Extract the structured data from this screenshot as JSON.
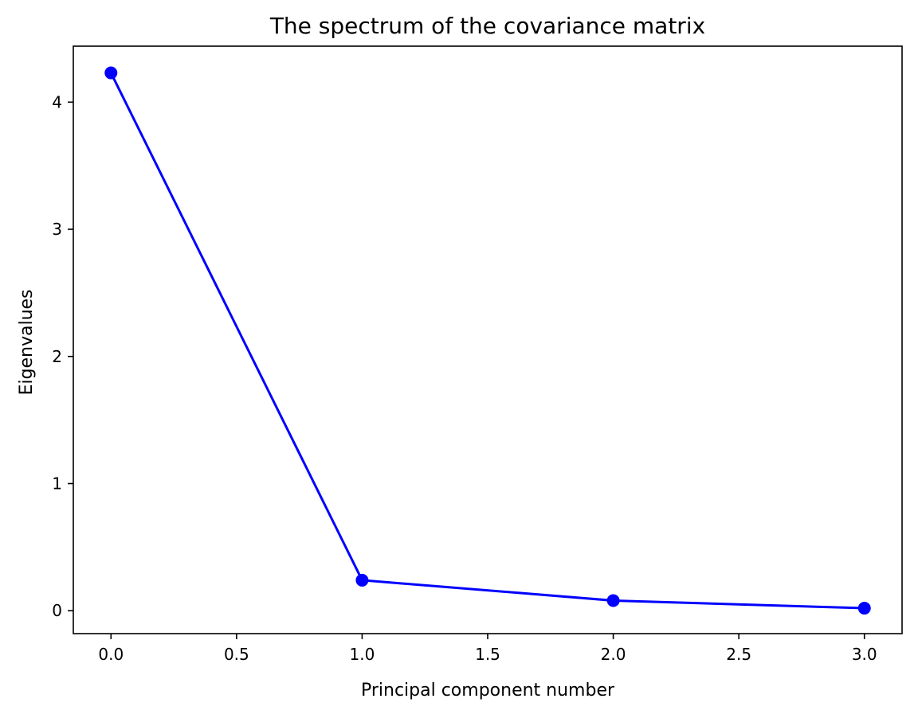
{
  "chart_data": {
    "type": "line",
    "title": "The spectrum of the covariance matrix",
    "xlabel": "Principal component number",
    "ylabel": "Eigenvalues",
    "x": [
      0,
      1,
      2,
      3
    ],
    "series": [
      {
        "values": [
          4.23,
          0.24,
          0.08,
          0.02
        ],
        "color": "#0000ff",
        "marker": "circle"
      }
    ],
    "xlim": [
      -0.15,
      3.15
    ],
    "ylim": [
      -0.18,
      4.44
    ],
    "xticks": [
      0.0,
      0.5,
      1.0,
      1.5,
      2.0,
      2.5,
      3.0
    ],
    "xtick_labels": [
      "0.0",
      "0.5",
      "1.0",
      "1.5",
      "2.0",
      "2.5",
      "3.0"
    ],
    "yticks": [
      0,
      1,
      2,
      3,
      4
    ],
    "ytick_labels": [
      "0",
      "1",
      "2",
      "3",
      "4"
    ],
    "grid": false,
    "legend": "none"
  }
}
